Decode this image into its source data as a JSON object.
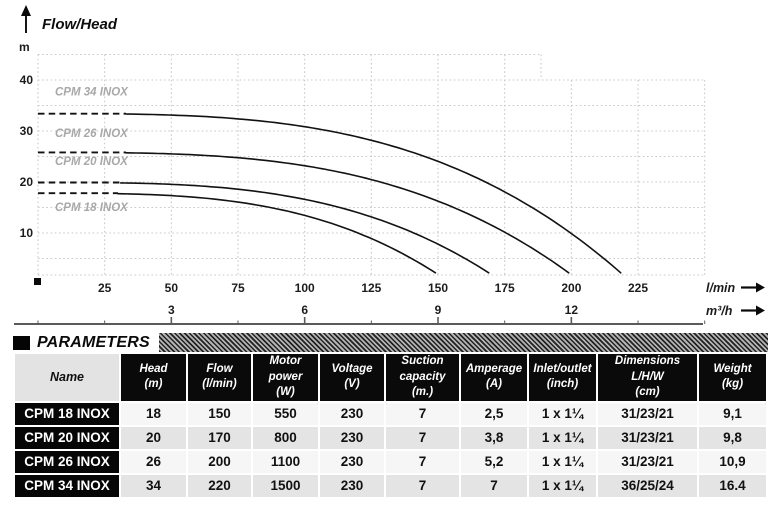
{
  "chart_data": {
    "type": "line",
    "title": "Flow/Head",
    "ylabel": "m",
    "xlabel_primary": "l/min",
    "xlabel_secondary": "m³/h",
    "x_range_lmin": [
      0,
      250
    ],
    "y_range_m": [
      0,
      45
    ],
    "grid": "dotted",
    "y_ticks_m": [
      40,
      30,
      20,
      10
    ],
    "x_ticks_lmin": [
      25,
      50,
      75,
      100,
      125,
      150,
      175,
      200,
      225
    ],
    "x_ticks_m3h": [
      {
        "value": "3",
        "lmin": 50
      },
      {
        "value": "6",
        "lmin": 100
      },
      {
        "value": "9",
        "lmin": 150
      },
      {
        "value": "12",
        "lmin": 200
      }
    ],
    "series": [
      {
        "name": "CPM 34 INOX",
        "shutoff_head_m": 34,
        "curve_start_head_m": 33.4,
        "max_flow_lmin": 220,
        "curve_end_flow_lmin": 218.5,
        "end_head_m": 2.2,
        "dashed_to_lmin": 33,
        "label_at_head_m": 37.0
      },
      {
        "name": "CPM 26 INOX",
        "shutoff_head_m": 26,
        "curve_start_head_m": 25.8,
        "max_flow_lmin": 200,
        "curve_end_flow_lmin": 199.0,
        "end_head_m": 2.2,
        "dashed_to_lmin": 33,
        "label_at_head_m": 28.8
      },
      {
        "name": "CPM 20 INOX",
        "shutoff_head_m": 20,
        "curve_start_head_m": 19.9,
        "max_flow_lmin": 170,
        "curve_end_flow_lmin": 169.0,
        "end_head_m": 2.2,
        "dashed_to_lmin": 31,
        "label_at_head_m": 23.3
      },
      {
        "name": "CPM 18 INOX",
        "shutoff_head_m": 18,
        "curve_start_head_m": 17.8,
        "max_flow_lmin": 150,
        "curve_end_flow_lmin": 149.0,
        "end_head_m": 2.2,
        "dashed_to_lmin": 30,
        "label_at_head_m": 14.3
      }
    ],
    "colors": {
      "curve": "#121212",
      "grid": "#c9c9c9",
      "curve_label": "#a8a8a8",
      "axis_line": "#5a5a5a",
      "tick_text": "#1c1c1c"
    }
  },
  "parameters": {
    "section_title": "PARAMETERS",
    "columns": [
      {
        "label": "Name",
        "unit": ""
      },
      {
        "label": "Head",
        "unit": "(m)"
      },
      {
        "label": "Flow",
        "unit": "(l/min)"
      },
      {
        "label": "Motor power",
        "unit": "(W)"
      },
      {
        "label": "Voltage",
        "unit": "(V)"
      },
      {
        "label": "Suction capacity",
        "unit": "(m.)"
      },
      {
        "label": "Amperage",
        "unit": "(A)"
      },
      {
        "label": "Inlet/outlet",
        "unit": "(inch)"
      },
      {
        "label": "Dimensions L/H/W",
        "unit": "(cm)"
      },
      {
        "label": "Weight",
        "unit": "(kg)"
      }
    ],
    "rows": [
      [
        "CPM 18 INOX",
        "18",
        "150",
        "550",
        "230",
        "7",
        "2,5",
        "1 x 1¼",
        "31/23/21",
        "9,1"
      ],
      [
        "CPM 20 INOX",
        "20",
        "170",
        "800",
        "230",
        "7",
        "3,8",
        "1 x 1¼",
        "31/23/21",
        "9,8"
      ],
      [
        "CPM 26 INOX",
        "26",
        "200",
        "1100",
        "230",
        "7",
        "5,2",
        "1 x 1¼",
        "31/23/21",
        "10,9"
      ],
      [
        "CPM 34 INOX",
        "34",
        "220",
        "1500",
        "230",
        "7",
        "7",
        "1 x 1¼",
        "36/25/24",
        "16.4"
      ]
    ]
  }
}
